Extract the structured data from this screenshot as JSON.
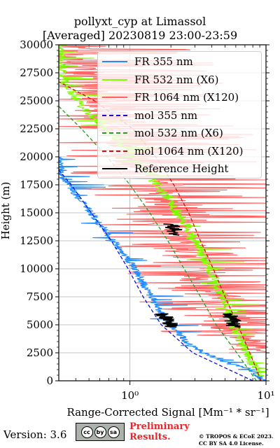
{
  "title_line1": "pollyxt_cyp at Limassol",
  "title_line2": "[Averaged] 20230819 23:00-23:59",
  "version": "Version: 3.6",
  "license_badge": [
    "cc",
    "by",
    "sa"
  ],
  "preliminary_line1": "Preliminary",
  "preliminary_line2": "Results.",
  "copyright_line1": "© TROPOS & ECoE 2023.",
  "copyright_line2": "CC BY SA 4.0 License.",
  "colors": {
    "fr355": "#1e8cff",
    "fr532": "#80ff00",
    "fr1064": "#ff6464",
    "mol355": "#1010d0",
    "mol532": "#20a020",
    "mol1064": "#d01010",
    "ref": "#000000"
  },
  "chart_data": {
    "type": "line",
    "xlabel": "Range-Corrected Signal [Mm⁻¹ * sr⁻¹]",
    "ylabel": "Height (m)",
    "xscale": "log",
    "xlim": [
      0.3,
      10
    ],
    "ylim": [
      0,
      30000
    ],
    "xticks": [
      1,
      10
    ],
    "xtick_labels": [
      "10⁰",
      "10¹"
    ],
    "yticks": [
      0,
      2500,
      5000,
      7500,
      10000,
      12500,
      15000,
      17500,
      20000,
      22500,
      25000,
      27500,
      30000
    ],
    "legend_position": "top-right",
    "grid": true,
    "series": [
      {
        "name": "FR 355 nm",
        "style": "solid",
        "heights": [
          0,
          1000,
          1500,
          2500,
          3500,
          5000,
          6500,
          8000,
          9500,
          11000,
          12500,
          14000,
          15500,
          17000,
          18500,
          20000
        ],
        "values": [
          9.5,
          8.0,
          5.5,
          3.5,
          2.6,
          2.0,
          1.6,
          1.35,
          1.15,
          0.95,
          0.75,
          0.6,
          0.48,
          0.38,
          0.31,
          0.3
        ]
      },
      {
        "name": "FR 532 nm (X6)",
        "style": "solid",
        "heights": [
          500,
          2000,
          3500,
          5000,
          6500,
          8000,
          9500,
          11000,
          12500,
          14000,
          15500,
          17000,
          18500,
          20000,
          21500,
          23000,
          24500,
          26000,
          27000,
          28000,
          29000,
          30000
        ],
        "values": [
          9.0,
          7.5,
          6.5,
          5.8,
          5.2,
          4.6,
          4.0,
          3.5,
          3.0,
          2.55,
          2.1,
          1.7,
          1.35,
          1.05,
          0.8,
          0.6,
          0.45,
          0.36,
          0.32,
          0.31,
          0.31,
          0.31
        ]
      },
      {
        "name": "FR 1064 nm (X120)",
        "style": "solid",
        "heights": [
          2500,
          4000,
          5500,
          7000,
          8500,
          10000,
          11500,
          13000,
          14500,
          16000,
          17500,
          19000,
          20500,
          22000,
          23500,
          25000,
          26500,
          28000,
          29500
        ],
        "values": [
          8.0,
          6.5,
          5.2,
          4.2,
          3.5,
          3.0,
          2.6,
          2.2,
          1.9,
          1.6,
          1.35,
          1.15,
          1.0,
          0.85,
          0.7,
          0.6,
          0.5,
          0.42,
          0.36
        ]
      },
      {
        "name": "mol 355 nm",
        "style": "dashed",
        "heights": [
          0,
          2500,
          5000,
          7500,
          10000,
          12500,
          15000,
          17500,
          18800
        ],
        "values": [
          8.0,
          2.9,
          1.7,
          1.25,
          0.97,
          0.73,
          0.52,
          0.37,
          0.3
        ]
      },
      {
        "name": "mol 532 nm (X6)",
        "style": "dashed",
        "heights": [
          0,
          2500,
          5000,
          7500,
          10000,
          12500,
          15000,
          17500,
          20000,
          22500,
          24500
        ],
        "values": [
          8.5,
          6.1,
          4.3,
          3.3,
          2.5,
          1.9,
          1.4,
          1.0,
          0.68,
          0.44,
          0.3
        ]
      },
      {
        "name": "mol 1064 nm (X120)",
        "style": "dashed",
        "heights": [
          0,
          2500,
          5000,
          7500,
          10000,
          12500,
          15000,
          17500,
          20000,
          22500,
          25000,
          26700
        ],
        "values": [
          9.2,
          7.6,
          6.2,
          5.0,
          4.1,
          3.3,
          2.7,
          2.1,
          1.55,
          1.05,
          0.55,
          0.3
        ]
      },
      {
        "name": "Reference Height",
        "style": "solid",
        "segments": [
          {
            "series": "FR 355 nm",
            "h0": 4800,
            "h1": 6000
          },
          {
            "series": "FR 532 nm (X6)",
            "h0": 4800,
            "h1": 6000
          },
          {
            "series": "FR 1064 nm (X120)",
            "h0": 13000,
            "h1": 14000
          }
        ]
      }
    ]
  }
}
